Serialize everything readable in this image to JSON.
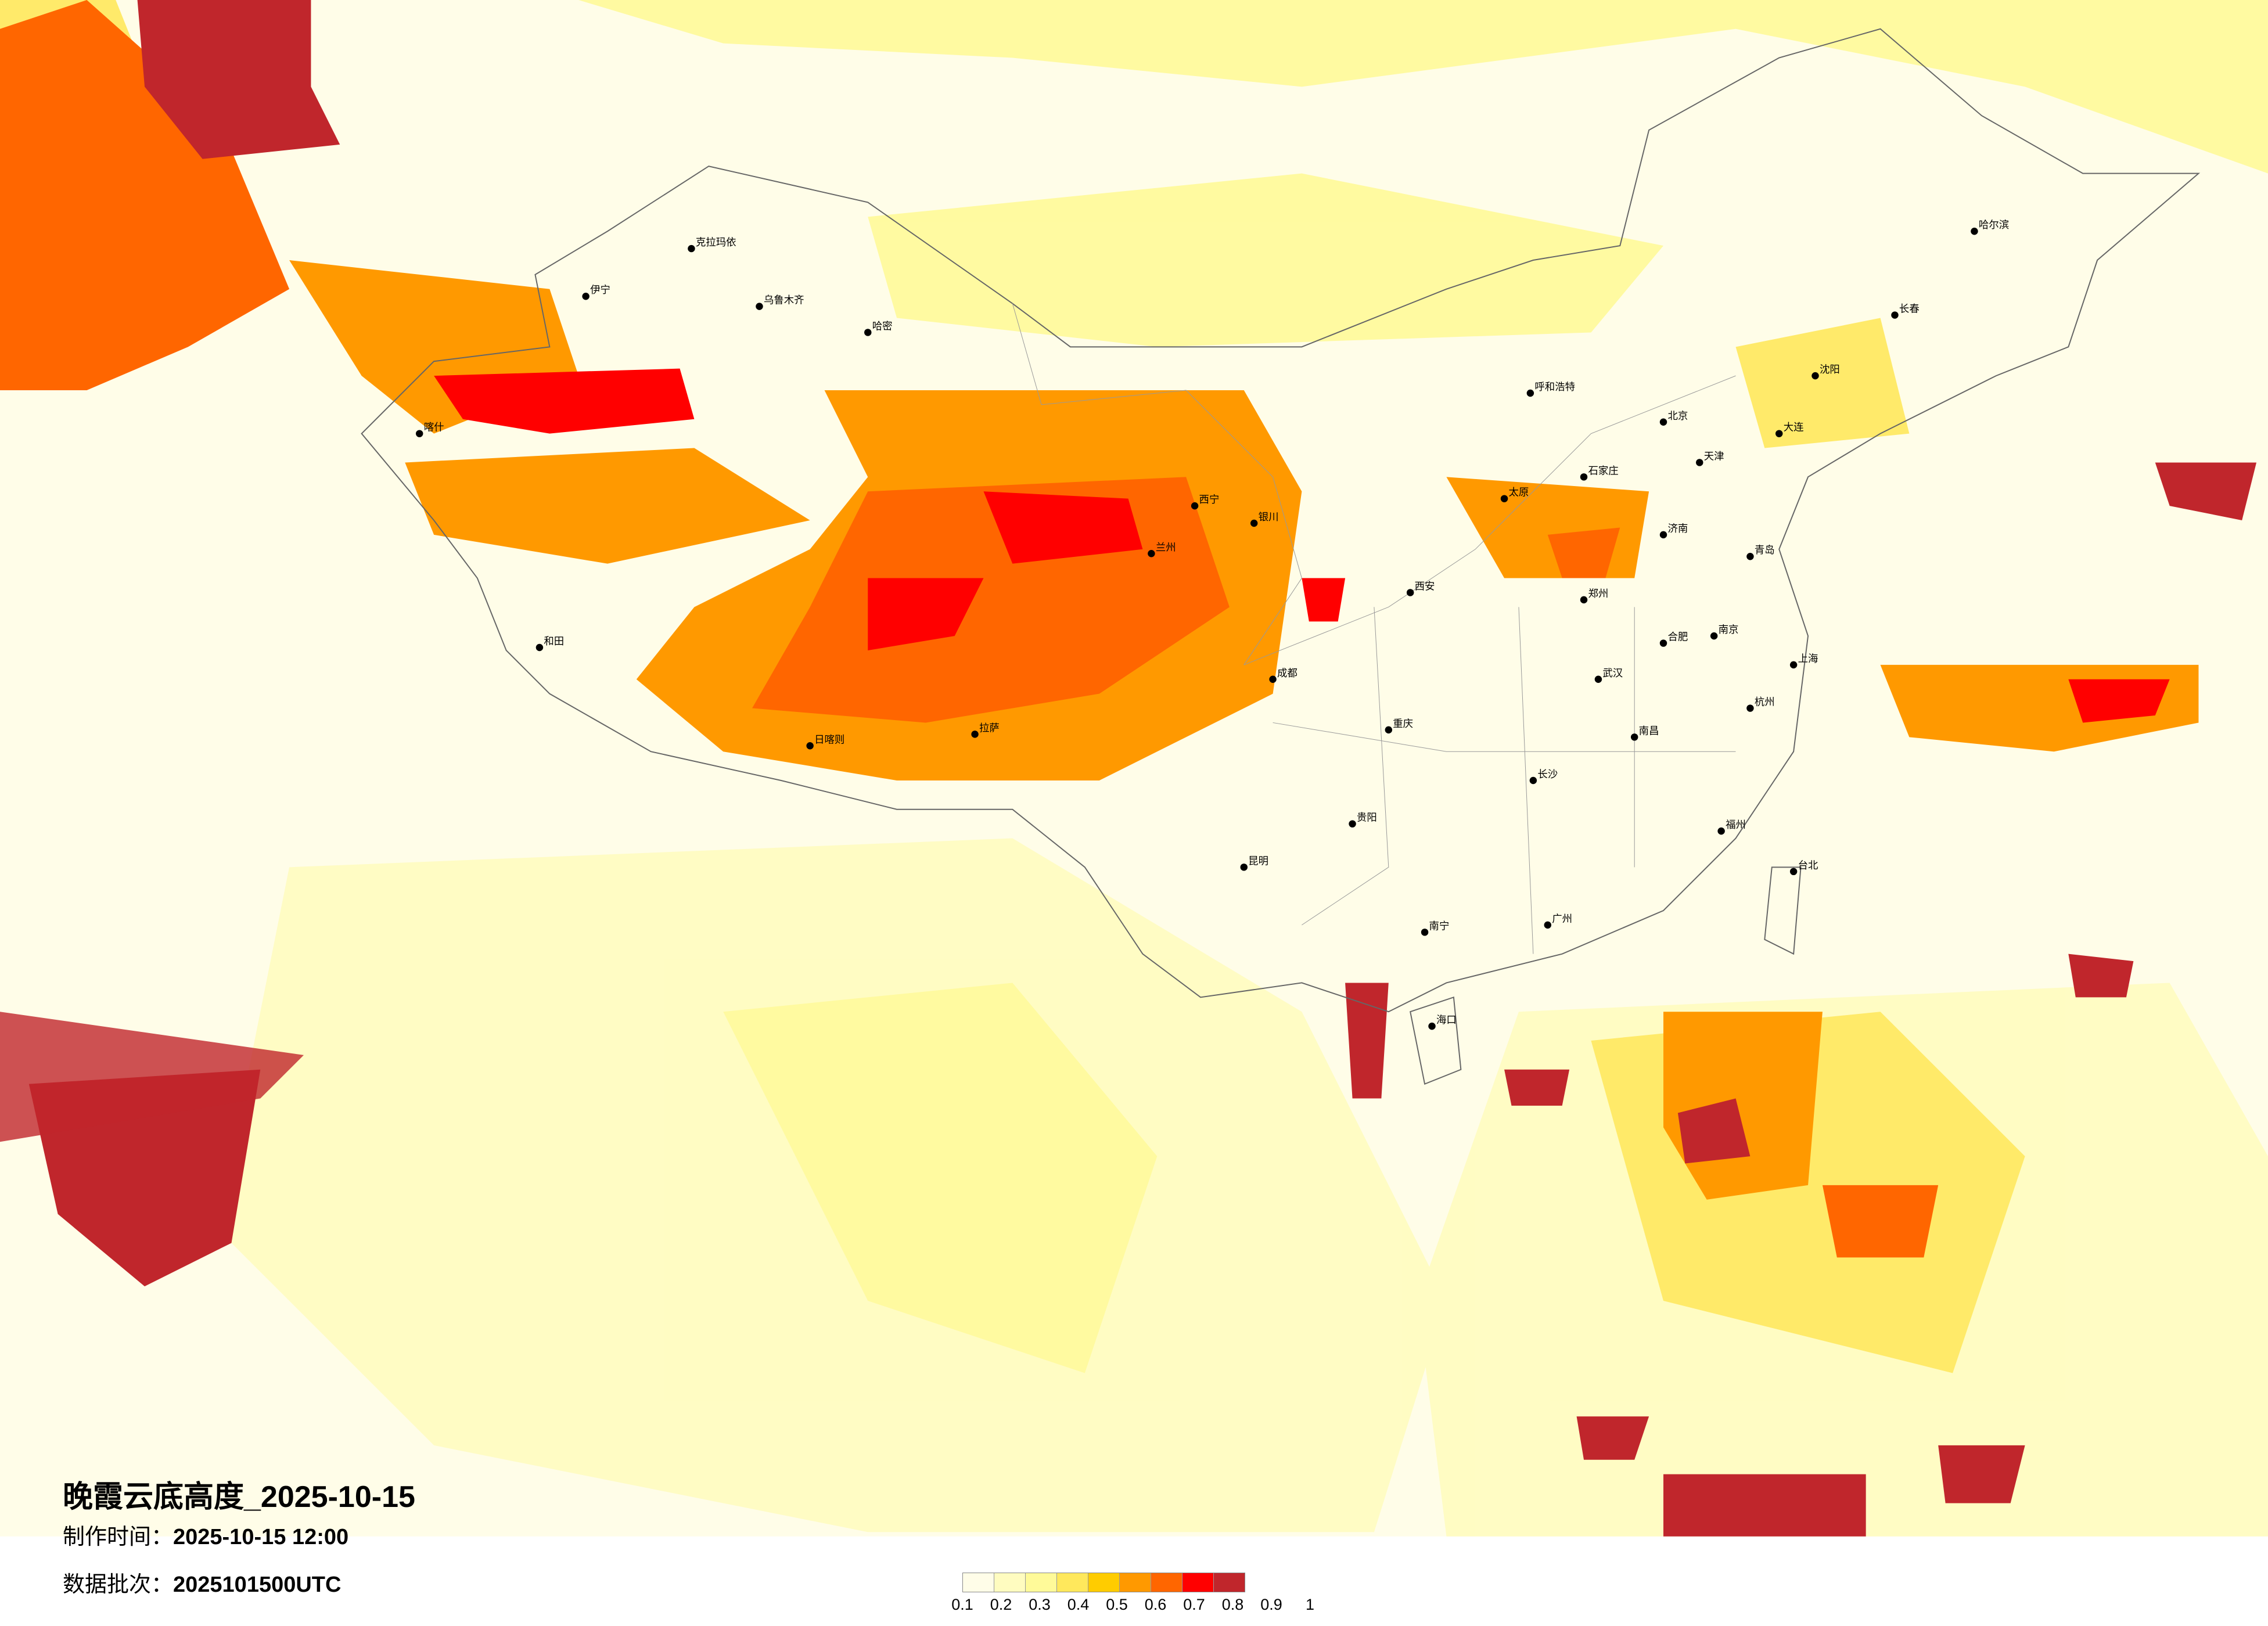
{
  "title": "晚霞云底高度_2025-10-15",
  "made_time_label": "制作时间：",
  "made_time": "2025-10-15 12:00",
  "batch_label": "数据批次：",
  "batch": "2025101500UTC",
  "legend": {
    "ticks": [
      "0.1",
      "0.2",
      "0.3",
      "0.4",
      "0.5",
      "0.6",
      "0.7",
      "0.8",
      "0.9",
      "1"
    ],
    "colors": [
      "#fffde8",
      "#fffcc0",
      "#fffa99",
      "#ffe85c",
      "#ffcc00",
      "#ff9900",
      "#ff6600",
      "#ff0000",
      "#c0262c"
    ]
  },
  "cities": [
    "乌鲁木齐",
    "克拉玛依",
    "伊宁",
    "喀什",
    "和田",
    "哈密",
    "拉萨",
    "日喀则",
    "西宁",
    "兰州",
    "银川",
    "呼和浩特",
    "北京",
    "天津",
    "石家庄",
    "太原",
    "济南",
    "郑州",
    "西安",
    "成都",
    "重庆",
    "昆明",
    "贵阳",
    "南宁",
    "广州",
    "长沙",
    "武汉",
    "南京",
    "上海",
    "杭州",
    "福州",
    "南昌",
    "合肥",
    "沈阳",
    "长春",
    "哈尔滨",
    "海口",
    "台北",
    "大连",
    "青岛"
  ]
}
